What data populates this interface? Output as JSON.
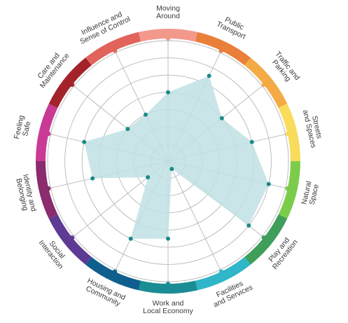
{
  "chart_data": {
    "type": "radar",
    "title": "",
    "scale": {
      "min": 0,
      "max": 7,
      "rings": 7
    },
    "grid": true,
    "categories": [
      {
        "label": "Moving\nAround",
        "value": 4,
        "color": "#f2998c"
      },
      {
        "label": "Public\nTransport",
        "value": 5.5,
        "color": "#ea7f3a"
      },
      {
        "label": "Traffic and\nParking",
        "value": 4,
        "color": "#f4aa45"
      },
      {
        "label": "Streets\nand Spaces",
        "value": 5,
        "color": "#f9dc5c"
      },
      {
        "label": "Natural\nSpace",
        "value": 6,
        "color": "#7ccc4c"
      },
      {
        "label": "Play and\nRecreation",
        "value": 6,
        "color": "#3f9e5a"
      },
      {
        "label": "Facilities\nand Services",
        "value": 0.5,
        "color": "#2fb6c9"
      },
      {
        "label": "Work and\nLocal Economy",
        "value": 4.5,
        "color": "#1a8d94"
      },
      {
        "label": "Housing and\nCommunity",
        "value": 5,
        "color": "#0f5f8e"
      },
      {
        "label": "Social\nInteraction",
        "value": 1.5,
        "color": "#5d3b94"
      },
      {
        "label": "Identity and\nBelonging",
        "value": 4.5,
        "color": "#8a2c6e"
      },
      {
        "label": "Feeling\nSafe",
        "value": 5,
        "color": "#c93a95"
      },
      {
        "label": "Care and\nMaintenance",
        "value": 3,
        "color": "#a4232b"
      },
      {
        "label": "Influence and\nSense of Control",
        "value": 3,
        "color": "#e0645c"
      }
    ],
    "fill_color": "#bfe0e3",
    "point_color": "#1b8a8a",
    "grid_color": "#b8b8b8"
  }
}
